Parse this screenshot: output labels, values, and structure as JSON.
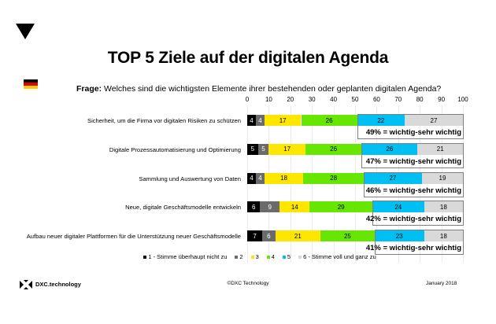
{
  "slide": {
    "title": "TOP 5 Ziele auf der digitalen Agenda",
    "question_label": "Frage:",
    "question_text": " Welches sind die wichtigsten Elemente ihrer bestehenden oder geplanten digitalen Agenda?",
    "country_flag": "germany-flag"
  },
  "chart_data": {
    "type": "bar",
    "orientation": "horizontal-stacked",
    "title": "TOP 5 Ziele auf der digitalen Agenda",
    "xlim": [
      0,
      100
    ],
    "x_ticks": [
      "0",
      "10",
      "20",
      "30",
      "40",
      "50",
      "60",
      "70",
      "80",
      "90",
      "100"
    ],
    "grid": true,
    "legend_position": "bottom",
    "categories": [
      "Sicherheit, um die Firma vor digitalen Risiken zu schützen",
      "Digitale Prozessautomatisierung und Optimierung",
      "Sammlung und Auswertung von Daten",
      "Neue, digitale Geschäftsmodelle entwickeln",
      "Aufbau neuer digitaler Plattformen für die Unterstützung neuer Geschäftsmodelle"
    ],
    "series": [
      {
        "name": "1 - Stimme überhaupt nicht zu",
        "color": "#000000",
        "text_color": "#ffffff",
        "values": [
          4,
          5,
          4,
          6,
          7
        ]
      },
      {
        "name": "2",
        "color": "#6b6b6b",
        "text_color": "#ffffff",
        "values": [
          4,
          5,
          4,
          9,
          6
        ]
      },
      {
        "name": "3",
        "color": "#ffe600",
        "text_color": "#000000",
        "values": [
          17,
          17,
          18,
          14,
          21
        ]
      },
      {
        "name": "4",
        "color": "#66e600",
        "text_color": "#000000",
        "values": [
          26,
          26,
          28,
          29,
          25
        ]
      },
      {
        "name": "5",
        "color": "#00bff3",
        "text_color": "#000000",
        "values": [
          22,
          26,
          27,
          24,
          23
        ]
      },
      {
        "name": "6 - Stimme voll und ganz zu",
        "color": "#d9d9d9",
        "text_color": "#000000",
        "values": [
          27,
          21,
          19,
          18,
          18
        ]
      }
    ],
    "annotations": [
      "49% = wichtig-sehr wichtig",
      "47% = wichtig-sehr wichtig",
      "46% = wichtig-sehr wichtig",
      "42% = wichtig-sehr wichtig",
      "41% = wichtig-sehr wichtig"
    ],
    "annotation_span_series": [
      4,
      5
    ]
  },
  "footer": {
    "logo_text": "DXC.technology",
    "copyright": "©DXC Technology",
    "date": "January 2018"
  }
}
